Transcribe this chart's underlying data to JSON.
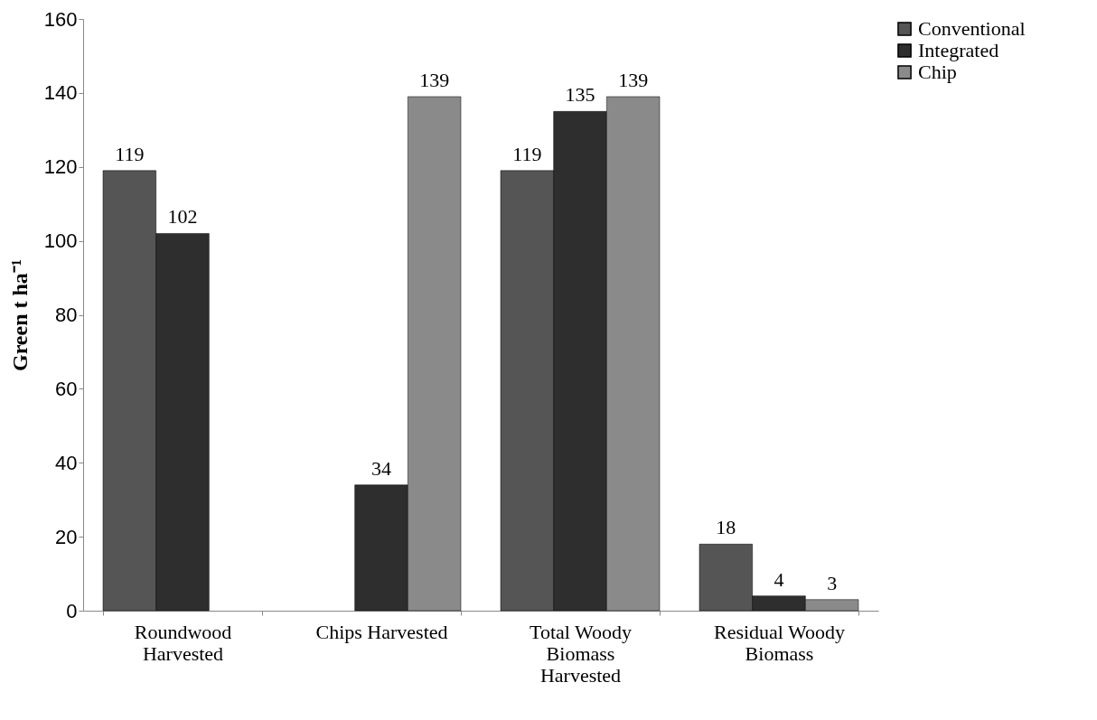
{
  "chart_data": {
    "type": "bar",
    "ylabel": "Green t ha⁻¹",
    "categories": [
      "Roundwood Harvested",
      "Chips Harvested",
      "Total Woody Biomass Harvested",
      "Residual Woody Biomass"
    ],
    "series": [
      {
        "name": "Conventional",
        "color": "#555555",
        "values": [
          119,
          null,
          119,
          18
        ]
      },
      {
        "name": "Integrated",
        "color": "#2e2e2e",
        "values": [
          102,
          34,
          135,
          4
        ]
      },
      {
        "name": "Chip",
        "color": "#8a8a8a",
        "values": [
          null,
          139,
          139,
          3
        ]
      }
    ],
    "ylim": [
      0,
      160
    ],
    "yticks": [
      0,
      20,
      40,
      60,
      80,
      100,
      120,
      140,
      160
    ],
    "grid": false,
    "legend": "right",
    "data_labels": true
  }
}
